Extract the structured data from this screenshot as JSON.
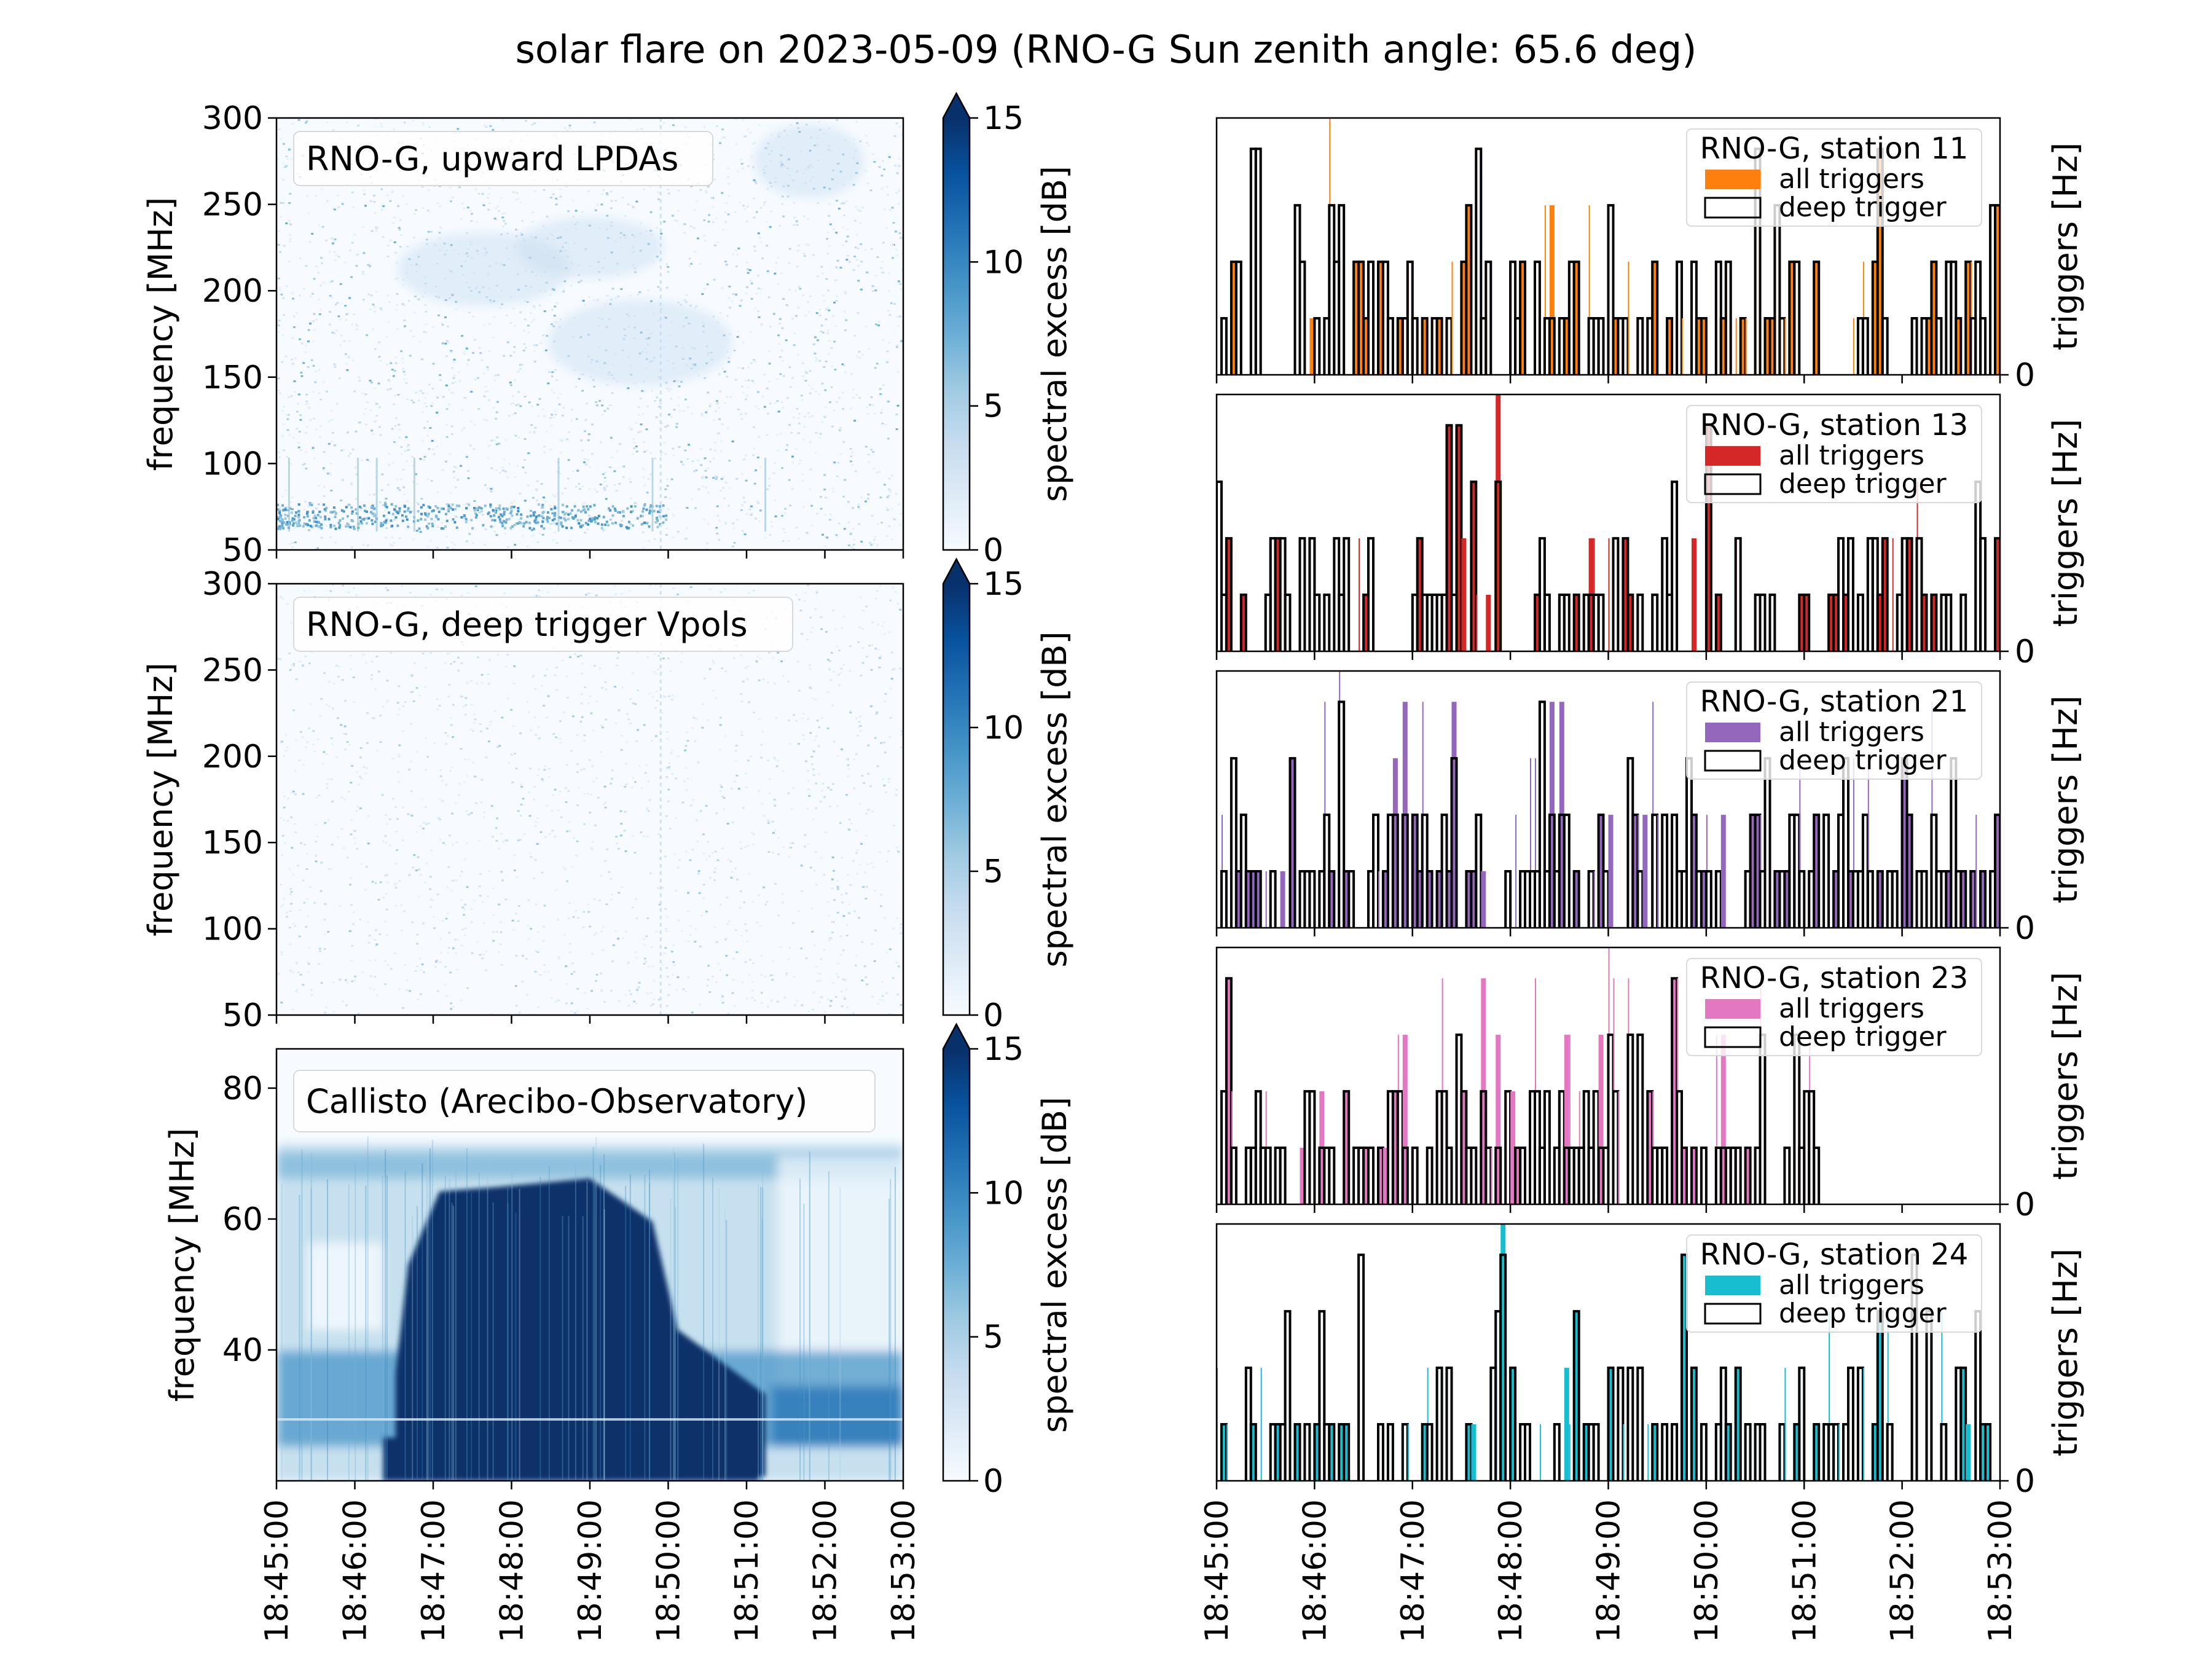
{
  "title": "solar flare on 2023-05-09 (RNO-G Sun zenith angle: 65.6 deg)",
  "time_ticks": [
    "18:45:00",
    "18:46:00",
    "18:47:00",
    "18:48:00",
    "18:49:00",
    "18:50:00",
    "18:51:00",
    "18:52:00",
    "18:53:00"
  ],
  "colorbar": {
    "label": "spectral excess [dB]",
    "ticks": [
      "0",
      "5",
      "10",
      "15"
    ],
    "range": [
      0,
      15
    ],
    "extend": "max"
  },
  "chart_data": [
    {
      "type": "heatmap",
      "title": "RNO-G, upward LPDAs",
      "ylabel": "frequency [MHz]",
      "ylim": [
        50,
        300
      ],
      "ytick_labels": [
        "50",
        "100",
        "150",
        "200",
        "250",
        "300"
      ],
      "xlim": [
        "18:45:00",
        "18:53:00"
      ],
      "colormap": "Blues",
      "color_range_db": [
        0,
        15
      ]
    },
    {
      "type": "heatmap",
      "title": "RNO-G, deep trigger Vpols",
      "ylabel": "frequency [MHz]",
      "ylim": [
        50,
        300
      ],
      "ytick_labels": [
        "50",
        "100",
        "150",
        "200",
        "250",
        "300"
      ],
      "xlim": [
        "18:45:00",
        "18:53:00"
      ],
      "colormap": "Blues",
      "color_range_db": [
        0,
        15
      ]
    },
    {
      "type": "heatmap",
      "title": "Callisto (Arecibo-Observatory)",
      "ylabel": "frequency [MHz]",
      "ylim": [
        20,
        86
      ],
      "ytick_labels": [
        "40",
        "60",
        "80"
      ],
      "xlim": [
        "18:45:00",
        "18:53:00"
      ],
      "colormap": "Blues",
      "color_range_db": [
        0,
        15
      ]
    },
    {
      "type": "bar",
      "title": "RNO-G, station 11",
      "ylabel": "triggers [Hz]",
      "ytick_labels": [
        "0"
      ],
      "color": "#ff7f0e",
      "legend": [
        "all triggers",
        "deep trigger"
      ],
      "legend_position": "top-right",
      "deep_levels": [
        1,
        2,
        3,
        4
      ],
      "deep_density": 0.52,
      "extra_all_density": 0.1,
      "coverage_end_fraction": 1.0,
      "seed": 11
    },
    {
      "type": "bar",
      "title": "RNO-G, station 13",
      "ylabel": "triggers [Hz]",
      "ytick_labels": [
        "0"
      ],
      "color": "#d62728",
      "legend": [
        "all triggers",
        "deep trigger"
      ],
      "legend_position": "top-right",
      "deep_levels": [
        1,
        2,
        3,
        4
      ],
      "deep_density": 0.5,
      "extra_all_density": 0.08,
      "coverage_end_fraction": 1.0,
      "seed": 13
    },
    {
      "type": "bar",
      "title": "RNO-G, station 21",
      "ylabel": "triggers [Hz]",
      "ytick_labels": [
        "0"
      ],
      "color": "#9467bd",
      "legend": [
        "all triggers",
        "deep trigger"
      ],
      "legend_position": "top-right",
      "deep_levels": [
        1,
        2,
        3,
        4
      ],
      "deep_density": 0.58,
      "extra_all_density": 0.18,
      "coverage_end_fraction": 1.0,
      "seed": 21
    },
    {
      "type": "bar",
      "title": "RNO-G, station 23",
      "ylabel": "triggers [Hz]",
      "ytick_labels": [
        "0"
      ],
      "color": "#e377c2",
      "legend": [
        "all triggers",
        "deep trigger"
      ],
      "legend_position": "top-right",
      "deep_levels": [
        1,
        2,
        3,
        4
      ],
      "deep_density": 0.66,
      "extra_all_density": 0.3,
      "coverage_end_fraction": 0.77,
      "seed": 23
    },
    {
      "type": "bar",
      "title": "RNO-G, station 24",
      "ylabel": "triggers [Hz]",
      "ytick_labels": [
        "0"
      ],
      "color": "#17becf",
      "legend": [
        "all triggers",
        "deep trigger"
      ],
      "legend_position": "top-right",
      "deep_levels": [
        1,
        2,
        3,
        4
      ],
      "deep_density": 0.55,
      "extra_all_density": 0.12,
      "coverage_end_fraction": 1.0,
      "seed": 24
    }
  ]
}
